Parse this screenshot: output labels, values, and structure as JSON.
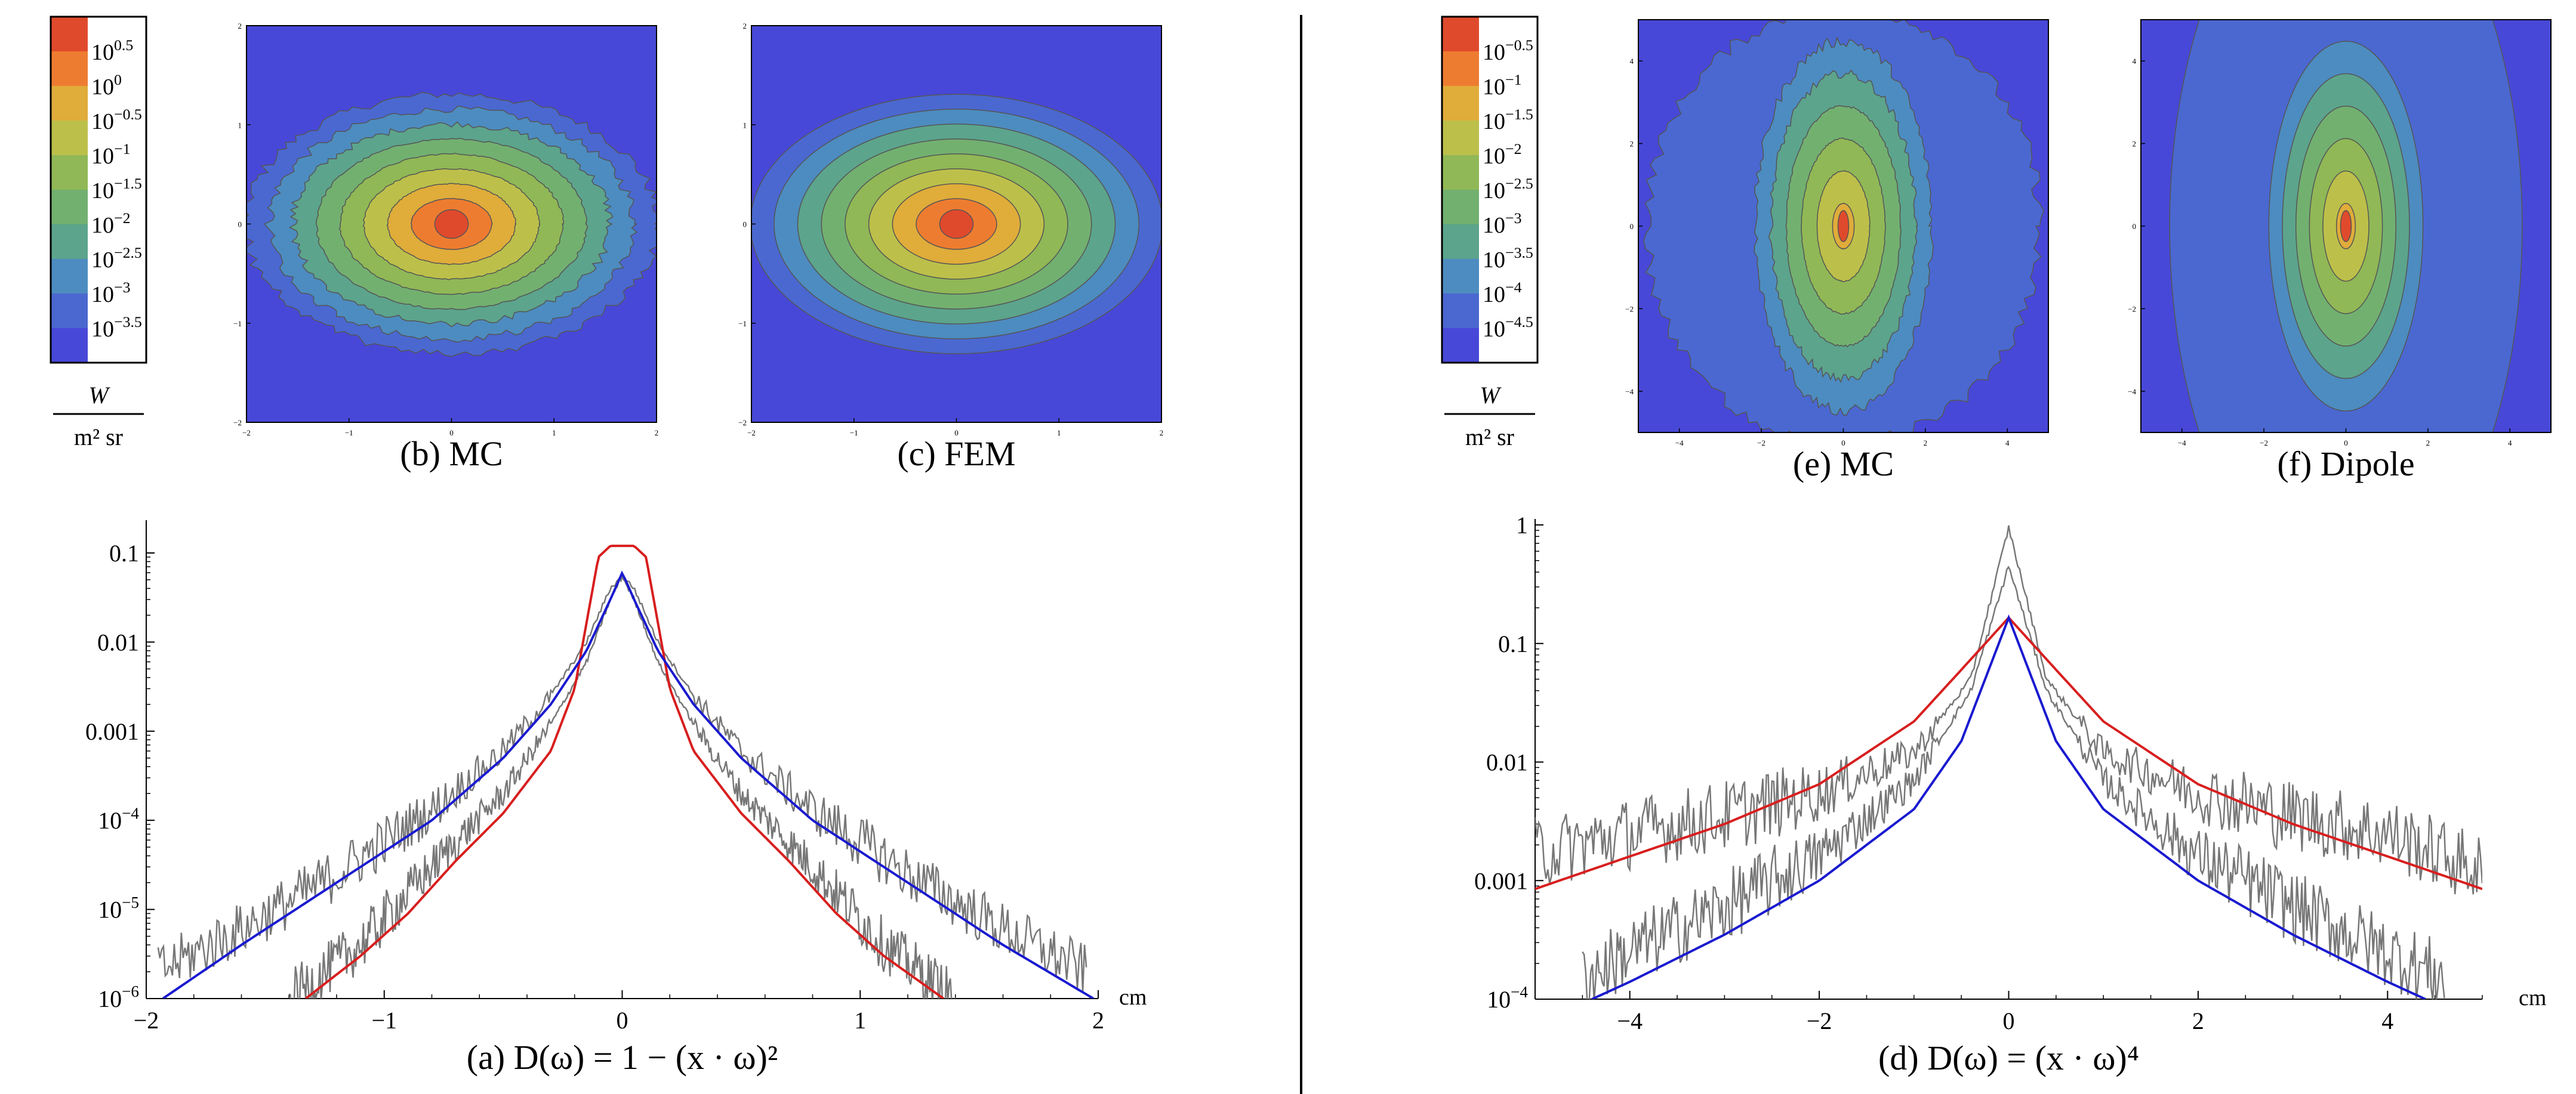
{
  "chart_data": [
    {
      "id": "a",
      "type": "line",
      "caption": "(a)  D(ω) = 1 − (x · ω)²",
      "caption_prefix": "(a)",
      "caption_formula": "D(ω) = 1 − (x · ω)²",
      "x_unit": "cm",
      "y_scale": "log",
      "xlim": [
        -2,
        2
      ],
      "ylim": [
        1e-06,
        0.2
      ],
      "x_ticks": [
        -2,
        -1,
        0,
        1,
        2
      ],
      "x_tick_labels": [
        "−2",
        "−1",
        "0",
        "1",
        "2"
      ],
      "y_ticks": [
        1e-06,
        1e-05,
        0.0001,
        0.001,
        0.01,
        0.1
      ],
      "y_tick_labels": [
        {
          "base": "10",
          "exp": "−6"
        },
        {
          "base": "10",
          "exp": "−5"
        },
        {
          "base": "10",
          "exp": "−4"
        },
        {
          "base": "0.001",
          "exp": ""
        },
        {
          "base": "0.01",
          "exp": ""
        },
        {
          "base": "0.1",
          "exp": ""
        }
      ],
      "series": [
        {
          "color": "#d81e1e",
          "x": [
            -1.33,
            -1.1,
            -0.9,
            -0.7,
            -0.5,
            -0.3,
            -0.2,
            -0.1,
            -0.05,
            0,
            0.05,
            0.1,
            0.2,
            0.3,
            0.5,
            0.7,
            0.9,
            1.1,
            1.35
          ],
          "y": [
            1e-06,
            3e-06,
            9e-06,
            3.5e-05,
            0.00012,
            0.0006,
            0.003,
            0.09,
            0.12,
            0.12,
            0.12,
            0.09,
            0.003,
            0.0006,
            0.00012,
            3.5e-05,
            9e-06,
            3e-06,
            1e-06
          ]
        },
        {
          "color": "#1a1ad0",
          "x": [
            -1.93,
            -1.6,
            -1.2,
            -0.8,
            -0.5,
            -0.3,
            -0.15,
            -0.05,
            0,
            0.05,
            0.15,
            0.3,
            0.5,
            0.8,
            1.2,
            1.6,
            1.98
          ],
          "y": [
            1e-06,
            4e-06,
            2e-05,
            0.0001,
            0.0005,
            0.002,
            0.008,
            0.03,
            0.06,
            0.03,
            0.008,
            0.002,
            0.0005,
            0.0001,
            2e-05,
            4e-06,
            1e-06
          ]
        },
        {
          "color": "#777777",
          "noisy": true,
          "x": [
            -1.95,
            -1.6,
            -1.2,
            -0.8,
            -0.5,
            -0.3,
            -0.15,
            -0.05,
            0,
            0.05,
            0.15,
            0.3,
            0.5,
            0.8,
            1.2,
            1.6,
            1.95
          ],
          "y": [
            2e-06,
            6e-06,
            2.5e-05,
            0.00013,
            0.0006,
            0.0025,
            0.01,
            0.04,
            0.055,
            0.04,
            0.01,
            0.0025,
            0.0006,
            0.00013,
            2.5e-05,
            6e-06,
            2e-06
          ]
        },
        {
          "color": "#777777",
          "noisy": true,
          "x": [
            -1.4,
            -1.1,
            -0.8,
            -0.5,
            -0.3,
            -0.15,
            -0.05,
            0,
            0.05,
            0.15,
            0.3,
            0.5,
            0.8,
            1.1,
            1.4
          ],
          "y": [
            1e-06,
            4e-06,
            3e-05,
            0.0002,
            0.0012,
            0.006,
            0.03,
            0.055,
            0.03,
            0.006,
            0.0012,
            0.0002,
            3e-05,
            4e-06,
            1e-06
          ]
        }
      ]
    },
    {
      "id": "d",
      "type": "line",
      "caption": "(d)  D(ω) = (x · ω)⁴",
      "caption_prefix": "(d)",
      "caption_formula": "D(ω) = (x · ω)⁴",
      "x_unit": "cm",
      "y_scale": "log",
      "xlim": [
        -5,
        5
      ],
      "ylim": [
        0.0001,
        1
      ],
      "x_ticks": [
        -4,
        -2,
        0,
        2,
        4
      ],
      "x_tick_labels": [
        "−4",
        "−2",
        "0",
        "2",
        "4"
      ],
      "y_ticks": [
        0.0001,
        0.001,
        0.01,
        0.1,
        1
      ],
      "y_tick_labels": [
        {
          "base": "10",
          "exp": "−4"
        },
        {
          "base": "0.001",
          "exp": ""
        },
        {
          "base": "0.01",
          "exp": ""
        },
        {
          "base": "0.1",
          "exp": ""
        },
        {
          "base": "1",
          "exp": ""
        }
      ],
      "series": [
        {
          "color": "#d81e1e",
          "x": [
            -5,
            -4,
            -3,
            -2,
            -1,
            -0.5,
            0,
            0.5,
            1,
            2,
            3,
            4,
            5
          ],
          "y": [
            0.00085,
            0.0016,
            0.003,
            0.0065,
            0.022,
            0.06,
            0.165,
            0.06,
            0.022,
            0.0065,
            0.003,
            0.0016,
            0.00085
          ]
        },
        {
          "color": "#1a1ad0",
          "x": [
            -4.4,
            -4,
            -3,
            -2,
            -1,
            -0.5,
            0,
            0.5,
            1,
            2,
            3,
            4,
            4.4
          ],
          "y": [
            0.0001,
            0.00014,
            0.00035,
            0.001,
            0.004,
            0.015,
            0.165,
            0.015,
            0.004,
            0.001,
            0.00035,
            0.00014,
            0.0001
          ]
        },
        {
          "color": "#777777",
          "noisy": true,
          "x": [
            -5,
            -4,
            -3,
            -2,
            -1,
            -0.4,
            0,
            0.4,
            1,
            2,
            3,
            4,
            5
          ],
          "y": [
            0.0017,
            0.0025,
            0.0035,
            0.0055,
            0.012,
            0.05,
            0.95,
            0.05,
            0.012,
            0.0055,
            0.0035,
            0.0025,
            0.0012
          ]
        },
        {
          "color": "#777777",
          "noisy": true,
          "x": [
            -4.5,
            -4,
            -3,
            -2,
            -1,
            -0.4,
            0,
            0.4,
            1,
            2,
            3,
            4,
            4.6
          ],
          "y": [
            0.00015,
            0.00025,
            0.0006,
            0.0016,
            0.007,
            0.04,
            0.45,
            0.04,
            0.007,
            0.0016,
            0.0006,
            0.00025,
            0.00015
          ]
        }
      ]
    },
    {
      "id": "b",
      "type": "heatmap",
      "caption": "(b)  MC",
      "caption_prefix": "(b)",
      "caption_label": "MC",
      "xlim": [
        -2,
        2
      ],
      "ylim": [
        -2,
        2
      ],
      "x_tick_labels": [
        "−2",
        "−1",
        "0",
        "1",
        "2"
      ],
      "y_tick_labels": [
        "−2",
        "−1",
        "0",
        "1",
        "2"
      ],
      "ratio": 0.63,
      "noisy": true
    },
    {
      "id": "c",
      "type": "heatmap",
      "caption": "(c)  FEM",
      "caption_prefix": "(c)",
      "caption_label": "FEM",
      "xlim": [
        -2,
        2
      ],
      "ylim": [
        -2,
        2
      ],
      "x_tick_labels": [
        "−2",
        "−1",
        "0",
        "1",
        "2"
      ],
      "y_tick_labels": [
        "−2",
        "−1",
        "0",
        "1",
        "2"
      ],
      "ratio": 0.63,
      "noisy": false
    },
    {
      "id": "e",
      "type": "heatmap",
      "caption": "(e)  MC",
      "caption_prefix": "(e)",
      "caption_label": "MC",
      "xlim": [
        -5,
        5
      ],
      "ylim": [
        -5,
        5
      ],
      "x_tick_labels": [
        "−4",
        "−2",
        "0",
        "2",
        "4"
      ],
      "y_tick_labels": [
        "−4",
        "−2",
        "0",
        "2",
        "4"
      ],
      "ratio": 2.1,
      "noisy": true
    },
    {
      "id": "f",
      "type": "heatmap",
      "caption": "(f)  Dipole",
      "caption_prefix": "(f)",
      "caption_label": "Dipole",
      "xlim": [
        -5,
        5
      ],
      "ylim": [
        -5,
        5
      ],
      "x_tick_labels": [
        "−4",
        "−2",
        "0",
        "2",
        "4"
      ],
      "y_tick_labels": [
        "−4",
        "−2",
        "0",
        "2",
        "4"
      ],
      "ratio": 2.4,
      "noisy": false
    }
  ],
  "legends": [
    {
      "id": "left",
      "colors": [
        "#e04a2c",
        "#ee7c30",
        "#e0ac3a",
        "#bcc04a",
        "#90b856",
        "#72b070",
        "#5ca48c",
        "#4d8cc0",
        "#4a68d0",
        "#4848d8"
      ],
      "labels": [
        {
          "base": "10",
          "exp": "0.5"
        },
        {
          "base": "10",
          "exp": "0"
        },
        {
          "base": "10",
          "exp": "−0.5"
        },
        {
          "base": "10",
          "exp": "−1"
        },
        {
          "base": "10",
          "exp": "−1.5"
        },
        {
          "base": "10",
          "exp": "−2"
        },
        {
          "base": "10",
          "exp": "−2.5"
        },
        {
          "base": "10",
          "exp": "−3"
        },
        {
          "base": "10",
          "exp": "−3.5"
        }
      ],
      "unit_num": "W",
      "unit_den": "m² sr"
    },
    {
      "id": "right",
      "colors": [
        "#e04a2c",
        "#ee7c30",
        "#e0ac3a",
        "#bcc04a",
        "#90b856",
        "#72b070",
        "#5ca48c",
        "#4d8cc0",
        "#4a68d0",
        "#4848d8"
      ],
      "labels": [
        {
          "base": "10",
          "exp": "−0.5"
        },
        {
          "base": "10",
          "exp": "−1"
        },
        {
          "base": "10",
          "exp": "−1.5"
        },
        {
          "base": "10",
          "exp": "−2"
        },
        {
          "base": "10",
          "exp": "−2.5"
        },
        {
          "base": "10",
          "exp": "−3"
        },
        {
          "base": "10",
          "exp": "−3.5"
        },
        {
          "base": "10",
          "exp": "−4"
        },
        {
          "base": "10",
          "exp": "−4.5"
        }
      ],
      "unit_num": "W",
      "unit_den": "m² sr"
    }
  ]
}
